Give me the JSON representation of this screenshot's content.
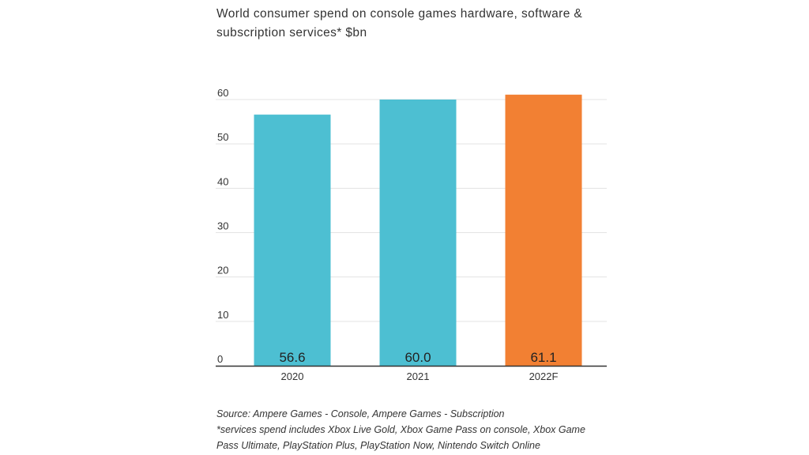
{
  "chart_data": {
    "type": "bar",
    "title": "World consumer spend on console games hardware, software & subscription services* $bn",
    "categories": [
      "2020",
      "2021",
      "2022F"
    ],
    "values": [
      56.6,
      60.0,
      61.1
    ],
    "value_labels": [
      "56.6",
      "60.0",
      "61.1"
    ],
    "bar_colors": [
      "#4dbfd2",
      "#4dbfd2",
      "#f28033"
    ],
    "xlabel": "",
    "ylabel": "",
    "ylim": [
      0,
      60
    ],
    "yticks": [
      0,
      10,
      20,
      30,
      40,
      50,
      60
    ],
    "grid": true,
    "legend": "none"
  },
  "footnotes": {
    "source": "Source: Ampere Games - Console, Ampere Games - Subscription",
    "services_line1": "*services spend includes Xbox Live Gold, Xbox Game Pass on console, Xbox Game",
    "services_line2": "Pass Ultimate, PlayStation Plus, PlayStation Now, Nintendo Switch Online"
  },
  "colors": {
    "grid": "#e3e3e3",
    "axis": "#333333",
    "text": "#333333"
  }
}
